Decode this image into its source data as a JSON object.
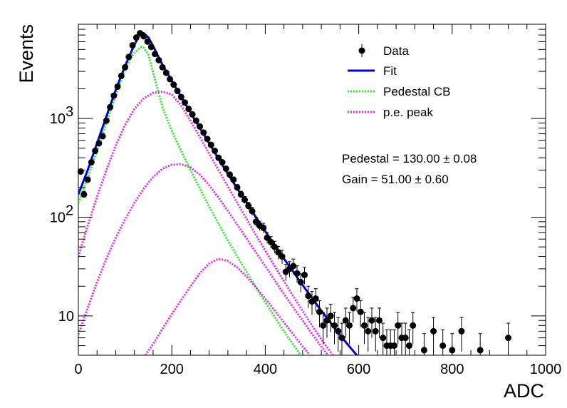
{
  "chart_data": {
    "type": "scatter",
    "xlabel": "ADC",
    "ylabel": "Events",
    "xlim": [
      0,
      1000
    ],
    "ylim": [
      4,
      9000
    ],
    "yscale": "log",
    "grid": false,
    "legend_position": "top-right",
    "x_ticks": [
      "0",
      "200",
      "400",
      "600",
      "800",
      "1000"
    ],
    "y_ticks": [
      {
        "value": 10,
        "label": "10",
        "exp": ""
      },
      {
        "value": 100,
        "label": "10",
        "exp": "2"
      },
      {
        "value": 1000,
        "label": "10",
        "exp": "3"
      }
    ],
    "legend": [
      {
        "label": "Data",
        "style": "marker",
        "color": "#000000"
      },
      {
        "label": "Fit",
        "style": "solid",
        "color": "#0000dd"
      },
      {
        "label": "Pedestal CB",
        "style": "dotted",
        "color": "#22ee22"
      },
      {
        "label": "p.e. peak",
        "style": "dotted",
        "color": "#ee22ee"
      }
    ],
    "annotations": [
      {
        "text": "Pedestal = 130.00 ± 0.08"
      },
      {
        "text": "Gain = 51.00 ± 0.60"
      }
    ],
    "series": [
      {
        "name": "Data",
        "color": "#000000",
        "points": [
          [
            5,
            290
          ],
          [
            12,
            170
          ],
          [
            20,
            240
          ],
          [
            28,
            360
          ],
          [
            36,
            470
          ],
          [
            44,
            560
          ],
          [
            52,
            660
          ],
          [
            60,
            950
          ],
          [
            68,
            1300
          ],
          [
            76,
            1700
          ],
          [
            84,
            2100
          ],
          [
            92,
            2700
          ],
          [
            100,
            3300
          ],
          [
            108,
            4200
          ],
          [
            116,
            5500
          ],
          [
            124,
            6600
          ],
          [
            132,
            7300
          ],
          [
            140,
            6800
          ],
          [
            148,
            6000
          ],
          [
            156,
            5300
          ],
          [
            164,
            4500
          ],
          [
            172,
            3900
          ],
          [
            180,
            3300
          ],
          [
            188,
            2900
          ],
          [
            196,
            2500
          ],
          [
            204,
            2200
          ],
          [
            212,
            1900
          ],
          [
            220,
            1650
          ],
          [
            228,
            1450
          ],
          [
            236,
            1250
          ],
          [
            244,
            1100
          ],
          [
            252,
            950
          ],
          [
            260,
            830
          ],
          [
            268,
            720
          ],
          [
            276,
            620
          ],
          [
            284,
            540
          ],
          [
            292,
            470
          ],
          [
            300,
            400
          ],
          [
            308,
            360
          ],
          [
            316,
            310
          ],
          [
            324,
            270
          ],
          [
            332,
            240
          ],
          [
            340,
            200
          ],
          [
            348,
            170
          ],
          [
            356,
            150
          ],
          [
            364,
            130
          ],
          [
            372,
            115
          ],
          [
            380,
            90
          ],
          [
            388,
            82
          ],
          [
            396,
            78
          ],
          [
            404,
            62
          ],
          [
            412,
            56
          ],
          [
            420,
            50
          ],
          [
            428,
            44
          ],
          [
            436,
            40
          ],
          [
            444,
            28
          ],
          [
            452,
            30
          ],
          [
            460,
            32
          ],
          [
            468,
            27
          ],
          [
            476,
            22
          ],
          [
            484,
            26
          ],
          [
            492,
            16
          ],
          [
            500,
            14
          ],
          [
            508,
            15
          ],
          [
            516,
            11
          ],
          [
            524,
            8
          ],
          [
            532,
            9
          ],
          [
            540,
            10
          ],
          [
            548,
            8
          ],
          [
            556,
            7
          ],
          [
            564,
            6
          ],
          [
            572,
            9
          ],
          [
            580,
            8
          ],
          [
            588,
            12
          ],
          [
            596,
            15
          ],
          [
            604,
            11
          ],
          [
            612,
            8
          ],
          [
            620,
            7
          ],
          [
            628,
            9
          ],
          [
            636,
            7
          ],
          [
            644,
            9
          ],
          [
            652,
            6
          ],
          [
            660,
            5
          ],
          [
            668,
            5
          ],
          [
            676,
            5
          ],
          [
            684,
            8
          ],
          [
            692,
            6
          ],
          [
            700,
            6
          ],
          [
            708,
            5
          ],
          [
            716,
            8
          ],
          [
            740,
            4.5
          ],
          [
            760,
            7
          ],
          [
            780,
            5
          ],
          [
            800,
            4.5
          ],
          [
            820,
            7
          ],
          [
            860,
            4.5
          ],
          [
            920,
            6
          ]
        ]
      },
      {
        "name": "Fit",
        "color": "#0000dd",
        "points": [
          [
            0,
            170
          ],
          [
            20,
            300
          ],
          [
            40,
            560
          ],
          [
            60,
            1050
          ],
          [
            80,
            1950
          ],
          [
            100,
            3400
          ],
          [
            120,
            5600
          ],
          [
            130,
            6900
          ],
          [
            140,
            7300
          ],
          [
            150,
            6600
          ],
          [
            160,
            5400
          ],
          [
            180,
            3500
          ],
          [
            200,
            2400
          ],
          [
            220,
            1650
          ],
          [
            240,
            1150
          ],
          [
            260,
            800
          ],
          [
            280,
            560
          ],
          [
            300,
            390
          ],
          [
            320,
            275
          ],
          [
            340,
            195
          ],
          [
            360,
            140
          ],
          [
            380,
            100
          ],
          [
            400,
            72
          ],
          [
            420,
            52
          ],
          [
            440,
            38
          ],
          [
            460,
            28
          ],
          [
            480,
            20.5
          ],
          [
            500,
            15.2
          ],
          [
            520,
            11.3
          ],
          [
            540,
            8.5
          ],
          [
            560,
            6.4
          ],
          [
            580,
            4.9
          ],
          [
            600,
            3.8
          ]
        ]
      },
      {
        "name": "Pedestal CB",
        "color": "#22ee22",
        "points": [
          [
            0,
            140
          ],
          [
            20,
            250
          ],
          [
            40,
            470
          ],
          [
            60,
            900
          ],
          [
            80,
            1700
          ],
          [
            100,
            3100
          ],
          [
            112,
            4100
          ],
          [
            120,
            4600
          ],
          [
            130,
            5100
          ],
          [
            135,
            5300
          ],
          [
            140,
            5200
          ],
          [
            150,
            4400
          ],
          [
            160,
            2900
          ],
          [
            180,
            1300
          ],
          [
            200,
            750
          ],
          [
            220,
            470
          ],
          [
            240,
            300
          ],
          [
            260,
            195
          ],
          [
            280,
            128
          ],
          [
            300,
            86
          ],
          [
            320,
            58
          ],
          [
            340,
            40
          ],
          [
            360,
            28
          ],
          [
            380,
            19.5
          ],
          [
            400,
            13.8
          ],
          [
            420,
            9.8
          ],
          [
            440,
            7.0
          ],
          [
            460,
            5.1
          ],
          [
            480,
            3.8
          ]
        ]
      },
      {
        "name": "p.e. peak",
        "color": "#ee22ee",
        "points": [
          [
            0,
            40
          ],
          [
            20,
            82
          ],
          [
            40,
            160
          ],
          [
            60,
            300
          ],
          [
            80,
            530
          ],
          [
            100,
            860
          ],
          [
            120,
            1250
          ],
          [
            140,
            1600
          ],
          [
            160,
            1820
          ],
          [
            180,
            1870
          ],
          [
            200,
            1750
          ],
          [
            220,
            1350
          ],
          [
            240,
            950
          ],
          [
            260,
            650
          ],
          [
            280,
            440
          ],
          [
            300,
            300
          ],
          [
            320,
            205
          ],
          [
            340,
            140
          ],
          [
            360,
            96
          ],
          [
            380,
            66
          ],
          [
            400,
            46
          ],
          [
            420,
            32
          ],
          [
            440,
            22.5
          ],
          [
            460,
            15.8
          ],
          [
            480,
            11.2
          ],
          [
            500,
            8.0
          ],
          [
            520,
            5.8
          ],
          [
            540,
            4.3
          ],
          [
            560,
            3.2
          ]
        ]
      },
      {
        "name": "p.e. peak",
        "color": "#ee22ee",
        "points": [
          [
            0,
            6.5
          ],
          [
            20,
            12
          ],
          [
            40,
            22
          ],
          [
            60,
            38
          ],
          [
            80,
            62
          ],
          [
            100,
            95
          ],
          [
            120,
            140
          ],
          [
            140,
            195
          ],
          [
            160,
            255
          ],
          [
            180,
            310
          ],
          [
            200,
            340
          ],
          [
            220,
            345
          ],
          [
            240,
            320
          ],
          [
            260,
            270
          ],
          [
            280,
            210
          ],
          [
            300,
            158
          ],
          [
            320,
            116
          ],
          [
            340,
            84
          ],
          [
            360,
            61
          ],
          [
            380,
            44
          ],
          [
            400,
            32
          ],
          [
            420,
            23
          ],
          [
            440,
            16.7
          ],
          [
            460,
            12.2
          ],
          [
            480,
            9.0
          ],
          [
            500,
            6.6
          ],
          [
            520,
            4.9
          ],
          [
            540,
            3.7
          ]
        ]
      },
      {
        "name": "p.e. peak",
        "color": "#ee22ee",
        "points": [
          [
            140,
            3.8
          ],
          [
            160,
            5.2
          ],
          [
            180,
            7.4
          ],
          [
            200,
            10.4
          ],
          [
            220,
            14.5
          ],
          [
            240,
            20
          ],
          [
            260,
            27
          ],
          [
            280,
            34
          ],
          [
            300,
            38
          ],
          [
            320,
            36
          ],
          [
            340,
            31
          ],
          [
            360,
            25
          ],
          [
            380,
            19.5
          ],
          [
            400,
            15
          ],
          [
            420,
            11.4
          ],
          [
            440,
            8.6
          ],
          [
            460,
            6.5
          ],
          [
            480,
            4.9
          ],
          [
            500,
            3.8
          ]
        ]
      }
    ]
  }
}
